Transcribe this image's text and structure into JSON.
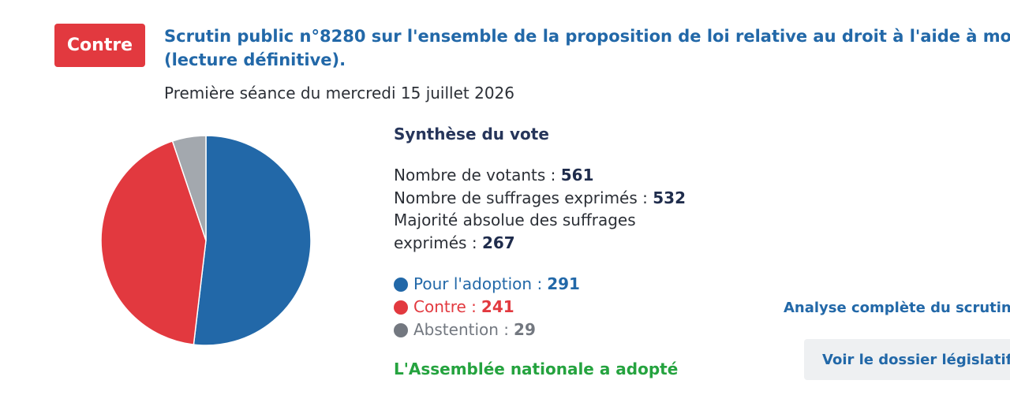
{
  "badge": {
    "label": "Contre",
    "color": "#e2393f"
  },
  "scrutin": {
    "title_line1": "Scrutin public n°8280 sur l'ensemble de la proposition de loi relative au droit à l'aide à mourir",
    "title_line2": "(lecture définitive).",
    "seance": "Première séance du mercredi 15 juillet 2026"
  },
  "synthese": {
    "title": "Synthèse du vote",
    "votants_label": "Nombre de votants : ",
    "votants": "561",
    "exprimes_label": "Nombre de suffrages exprimés : ",
    "exprimes": "532",
    "majorite_label_1": "Majorité absolue des suffrages",
    "majorite_label_2": "exprimés : ",
    "majorite": "267"
  },
  "legend": {
    "pour_label": "Pour l'adoption :",
    "pour": "291",
    "contre_label": "Contre :",
    "contre": "241",
    "abstention_label": "Abstention :",
    "abstention": "29"
  },
  "result": "L'Assemblée nationale a adopté",
  "links": {
    "analyse": "Analyse complète du scrutin",
    "dossier": "Voir le dossier législatif"
  },
  "icons": {
    "chevron": "chevron-right-icon"
  },
  "colors": {
    "pour": "#2268a8",
    "contre": "#e2393f",
    "abstention": "#a3a8ae"
  },
  "chart_data": {
    "type": "pie",
    "labels": [
      "Pour l'adoption",
      "Contre",
      "Abstention"
    ],
    "values": [
      291,
      241,
      29
    ],
    "colors": [
      "#2268a8",
      "#e2393f",
      "#a3a8ae"
    ]
  }
}
